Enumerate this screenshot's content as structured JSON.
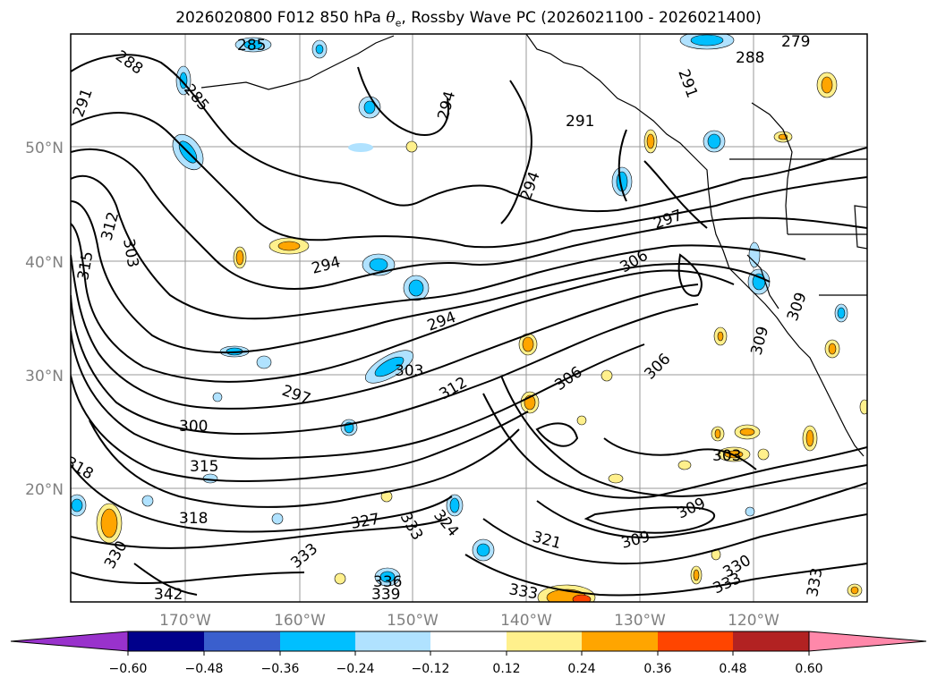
{
  "title": {
    "prefix": "2026020800 F012 850 hPa ",
    "symbol": "θ",
    "subscript": "e",
    "suffix": ", Rossby Wave PC (2026021100 - 2026021400)"
  },
  "map": {
    "lat_labels": [
      "50°N",
      "40°N",
      "30°N",
      "20°N"
    ],
    "lon_labels": [
      "170°W",
      "160°W",
      "150°W",
      "140°W",
      "130°W",
      "120°W"
    ],
    "contour_labels": [
      "288",
      "285",
      "285",
      "291",
      "294",
      "291",
      "291",
      "279",
      "288",
      "294",
      "297",
      "312",
      "303",
      "315",
      "294",
      "306",
      "294",
      "303",
      "312",
      "297",
      "300",
      "306",
      "306",
      "315",
      "318",
      "318",
      "327",
      "333",
      "324",
      "333",
      "330",
      "336",
      "339",
      "342",
      "333",
      "309",
      "321",
      "309",
      "303",
      "309",
      "309",
      "330",
      "333",
      "333"
    ]
  },
  "colorbar": {
    "ticks": [
      "−0.60",
      "−0.48",
      "−0.36",
      "−0.24",
      "−0.12",
      "0.12",
      "0.24",
      "0.36",
      "0.48",
      "0.60"
    ],
    "colors": [
      "#9932cc",
      "#00008b",
      "#3a5fcd",
      "#00bfff",
      "#b0e2ff",
      "#ffffff",
      "#fff08c",
      "#ffa500",
      "#ff4500",
      "#b22222",
      "#ff88aa"
    ]
  }
}
